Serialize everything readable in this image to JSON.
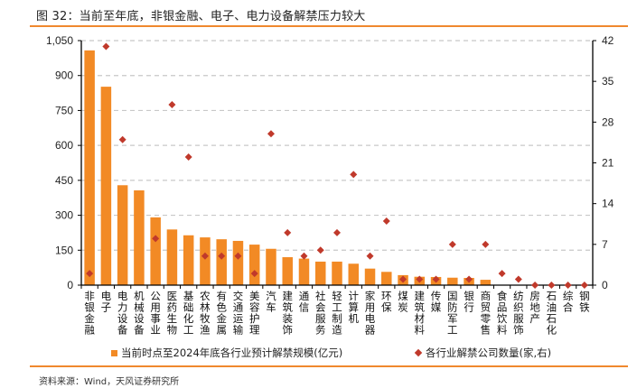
{
  "figure": {
    "title": "图 32：当前至年底，非银金融、电子、电力设备解禁压力较大",
    "source": "资料来源：Wind，天风证券研究所",
    "colors": {
      "bar": "#F28A25",
      "marker": "#C0392B",
      "rule": "#F0882E",
      "grid": "#C8C8C8"
    }
  },
  "chart_data": {
    "type": "bar",
    "title": "",
    "xlabel": "",
    "ylabel": "",
    "grid": true,
    "legend_position": "bottom",
    "categories": [
      "非银金融",
      "电子",
      "电力设备",
      "机械设备",
      "公用事业",
      "医药生物",
      "基础化工",
      "农林牧渔",
      "有色金属",
      "交通运输",
      "美容护理",
      "汽车",
      "建筑装饰",
      "通信",
      "社会服务",
      "轻工制造",
      "计算机",
      "家用电器",
      "环保",
      "煤炭",
      "建筑材料",
      "传媒",
      "国防军工",
      "银行",
      "商贸零售",
      "食品饮料",
      "纺织服饰",
      "房地产",
      "石油石化",
      "综合",
      "钢铁"
    ],
    "left_axis": {
      "ylim": [
        0,
        1050
      ],
      "ticks": [
        "0",
        "150",
        "300",
        "450",
        "600",
        "750",
        "900",
        "1,050"
      ]
    },
    "right_axis": {
      "ylim": [
        0,
        42
      ],
      "ticks": [
        "0",
        "7",
        "14",
        "21",
        "28",
        "35",
        "42"
      ]
    },
    "series": [
      {
        "name": "当前时点至2024年底各行业预计解禁规模(亿元)",
        "type": "bar",
        "axis": "left",
        "values": [
          1008,
          852,
          429,
          407,
          291,
          239,
          214,
          205,
          197,
          190,
          174,
          156,
          120,
          114,
          101,
          101,
          92,
          71,
          57,
          43,
          36,
          35,
          32,
          31,
          23,
          0,
          0,
          0,
          0,
          0,
          0
        ]
      },
      {
        "name": "各行业解禁公司数量(家,右)",
        "type": "scatter",
        "marker": "diamond",
        "axis": "right",
        "values": [
          2,
          41,
          25,
          null,
          8,
          31,
          22,
          5,
          5,
          5,
          2,
          26,
          9,
          5,
          6,
          9,
          19,
          5,
          11,
          1,
          1,
          1,
          7,
          1,
          7,
          2,
          1,
          0,
          0,
          0,
          0
        ]
      }
    ]
  }
}
